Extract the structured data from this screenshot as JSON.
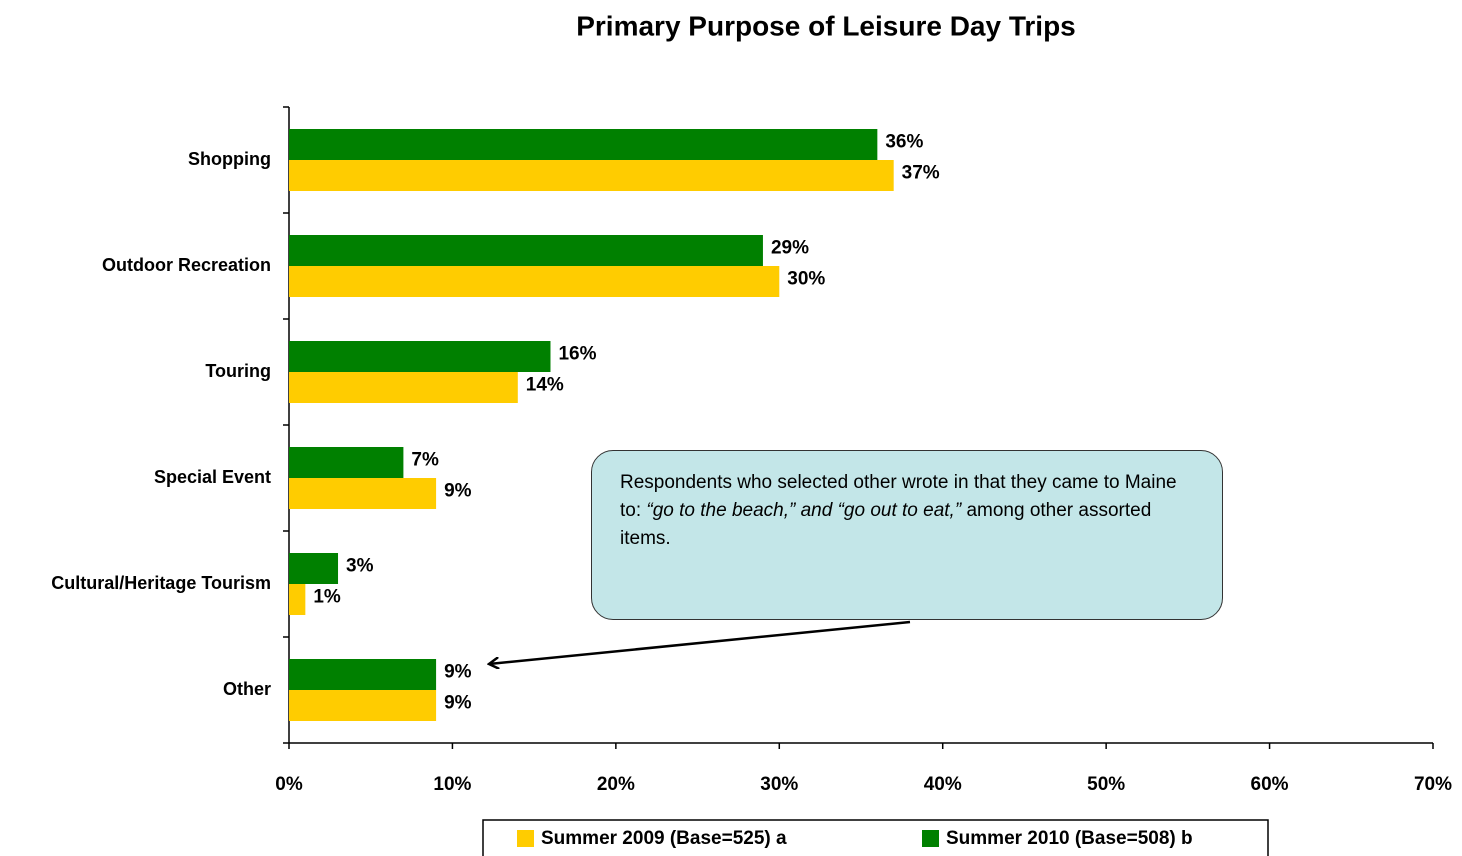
{
  "chart_data": {
    "type": "bar",
    "orientation": "horizontal",
    "title": "Primary Purpose of Leisure Day Trips",
    "categories": [
      "Shopping",
      "Outdoor Recreation",
      "Touring",
      "Special Event",
      "Cultural/Heritage Tourism",
      "Other"
    ],
    "series": [
      {
        "name": "Summer 2009 (Base=525) a",
        "color": "#ffcc00",
        "values": [
          37,
          30,
          14,
          9,
          1,
          9
        ],
        "value_labels": [
          "37%",
          "30%",
          "14%",
          "9%",
          "1%",
          "9%"
        ]
      },
      {
        "name": "Summer 2010 (Base=508) b",
        "color": "#008000",
        "values": [
          36,
          29,
          16,
          7,
          3,
          9
        ],
        "value_labels": [
          "36%",
          "29%",
          "16%",
          "7%",
          "3%",
          "9%"
        ]
      }
    ],
    "xlim": [
      0,
      70
    ],
    "xticks": [
      {
        "value": 0,
        "label": "0%"
      },
      {
        "value": 10,
        "label": "10%"
      },
      {
        "value": 20,
        "label": "20%"
      },
      {
        "value": 30,
        "label": "30%"
      },
      {
        "value": 40,
        "label": "40%"
      },
      {
        "value": 50,
        "label": "50%"
      },
      {
        "value": 60,
        "label": "60%"
      },
      {
        "value": 70,
        "label": "70%"
      }
    ],
    "legend": "bottom",
    "annotation": [
      "Respondents who selected other wrote in that they came to Maine to: ",
      "“go to the beach,” and “go out to eat,”",
      " among other assorted items."
    ]
  }
}
